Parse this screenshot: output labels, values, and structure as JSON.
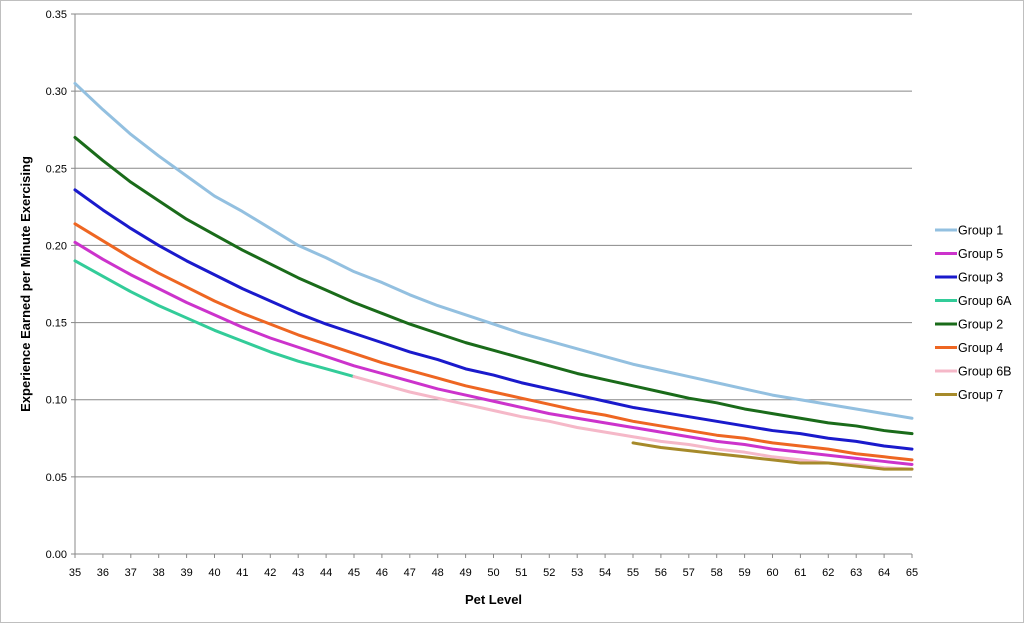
{
  "chart_data": {
    "type": "line",
    "xlabel": "Pet Level",
    "ylabel": "Experience Earned per Minute Exercising",
    "xlim": [
      35,
      65
    ],
    "ylim": [
      0,
      0.35
    ],
    "x_ticks": [
      "35",
      "36",
      "37",
      "38",
      "39",
      "40",
      "41",
      "42",
      "43",
      "44",
      "45",
      "46",
      "47",
      "48",
      "49",
      "50",
      "51",
      "52",
      "53",
      "54",
      "55",
      "56",
      "57",
      "58",
      "59",
      "60",
      "61",
      "62",
      "63",
      "64",
      "65"
    ],
    "y_ticks": [
      "0.00",
      "0.05",
      "0.10",
      "0.15",
      "0.20",
      "0.25",
      "0.30",
      "0.35"
    ],
    "y_tick_values": [
      0,
      0.05,
      0.1,
      0.15,
      0.2,
      0.25,
      0.3,
      0.35
    ],
    "grid": "horizontal",
    "legend_position": "right",
    "series": [
      {
        "name": "Group 1",
        "color": "#93c0e0",
        "x_start": 35,
        "values": [
          0.305,
          0.288,
          0.272,
          0.258,
          0.245,
          0.232,
          0.222,
          0.211,
          0.2,
          0.192,
          0.183,
          0.176,
          0.168,
          0.161,
          0.155,
          0.149,
          0.143,
          0.138,
          0.133,
          0.128,
          0.123,
          0.119,
          0.115,
          0.111,
          0.107,
          0.103,
          0.1,
          0.097,
          0.094,
          0.091,
          0.088
        ]
      },
      {
        "name": "Group 5",
        "color": "#cc33cc",
        "x_start": 35,
        "values": [
          0.202,
          0.191,
          0.181,
          0.172,
          0.163,
          0.155,
          0.147,
          0.14,
          0.134,
          0.128,
          0.122,
          0.117,
          0.112,
          0.107,
          0.103,
          0.099,
          0.095,
          0.091,
          0.088,
          0.085,
          0.082,
          0.079,
          0.076,
          0.073,
          0.071,
          0.068,
          0.066,
          0.064,
          0.062,
          0.06,
          0.058
        ]
      },
      {
        "name": "Group 3",
        "color": "#1a1acc",
        "x_start": 35,
        "values": [
          0.236,
          0.223,
          0.211,
          0.2,
          0.19,
          0.181,
          0.172,
          0.164,
          0.156,
          0.149,
          0.143,
          0.137,
          0.131,
          0.126,
          0.12,
          0.116,
          0.111,
          0.107,
          0.103,
          0.099,
          0.095,
          0.092,
          0.089,
          0.086,
          0.083,
          0.08,
          0.078,
          0.075,
          0.073,
          0.07,
          0.068
        ]
      },
      {
        "name": "Group 6A",
        "color": "#33cc99",
        "x_start": 35,
        "values": [
          0.19,
          0.18,
          0.17,
          0.161,
          0.153,
          0.145,
          0.138,
          0.131,
          0.125,
          0.12,
          0.115
        ]
      },
      {
        "name": "Group 2",
        "color": "#1a6b1a",
        "x_start": 35,
        "values": [
          0.27,
          0.255,
          0.241,
          0.229,
          0.217,
          0.207,
          0.197,
          0.188,
          0.179,
          0.171,
          0.163,
          0.156,
          0.149,
          0.143,
          0.137,
          0.132,
          0.127,
          0.122,
          0.117,
          0.113,
          0.109,
          0.105,
          0.101,
          0.098,
          0.094,
          0.091,
          0.088,
          0.085,
          0.083,
          0.08,
          0.078
        ]
      },
      {
        "name": "Group 4",
        "color": "#ee6622",
        "x_start": 35,
        "values": [
          0.214,
          0.203,
          0.192,
          0.182,
          0.173,
          0.164,
          0.156,
          0.149,
          0.142,
          0.136,
          0.13,
          0.124,
          0.119,
          0.114,
          0.109,
          0.105,
          0.101,
          0.097,
          0.093,
          0.09,
          0.086,
          0.083,
          0.08,
          0.077,
          0.075,
          0.072,
          0.07,
          0.068,
          0.065,
          0.063,
          0.061
        ]
      },
      {
        "name": "Group 6B",
        "color": "#f5b8c8",
        "x_start": 45,
        "values": [
          0.115,
          0.11,
          0.105,
          0.101,
          0.097,
          0.093,
          0.089,
          0.086,
          0.082,
          0.079,
          0.076,
          0.073,
          0.071,
          0.068,
          0.066,
          0.063,
          0.061,
          0.059,
          0.058,
          0.056,
          0.055
        ]
      },
      {
        "name": "Group 7",
        "color": "#a68a2a",
        "x_start": 55,
        "values": [
          0.072,
          0.069,
          0.067,
          0.065,
          0.063,
          0.061,
          0.059,
          0.059,
          0.057,
          0.055,
          0.055
        ]
      }
    ]
  }
}
